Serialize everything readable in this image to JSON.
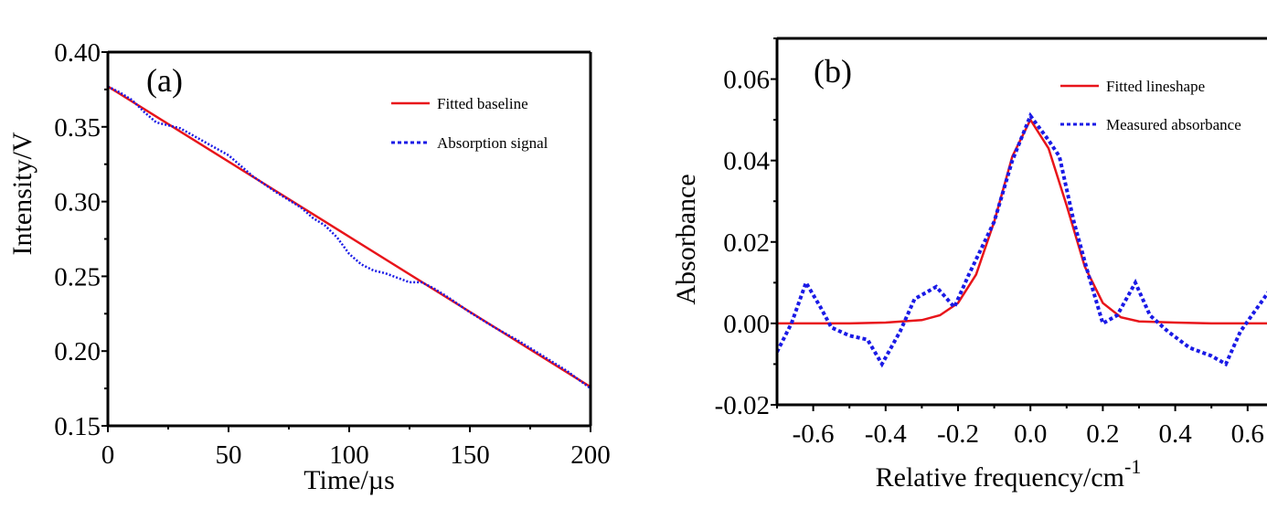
{
  "chart_data": [
    {
      "type": "line",
      "panel_label": "(a)",
      "xlabel": "Time/µs",
      "ylabel": "Intensity/V",
      "xlim": [
        0,
        200
      ],
      "ylim": [
        0.15,
        0.4
      ],
      "xticks": [
        "0",
        "50",
        "100",
        "150",
        "200"
      ],
      "xtick_values": [
        0,
        50,
        100,
        150,
        200
      ],
      "yticks": [
        "0.15",
        "0.20",
        "0.25",
        "0.30",
        "0.35",
        "0.40"
      ],
      "ytick_values": [
        0.15,
        0.2,
        0.25,
        0.3,
        0.35,
        0.4
      ],
      "legend_position": "top-right",
      "series": [
        {
          "name": "Fitted baseline",
          "style": "solid",
          "color": "#e8141a",
          "x": [
            0,
            200
          ],
          "y": [
            0.377,
            0.176
          ]
        },
        {
          "name": "Absorption signal",
          "style": "dotted",
          "color": "#1a1ae6",
          "x": [
            0,
            5,
            10,
            15,
            20,
            30,
            40,
            50,
            60,
            70,
            80,
            85,
            90,
            95,
            100,
            105,
            110,
            115,
            120,
            125,
            130,
            135,
            140,
            150,
            160,
            170,
            180,
            190,
            200
          ],
          "y": [
            0.377,
            0.373,
            0.368,
            0.36,
            0.353,
            0.349,
            0.34,
            0.331,
            0.317,
            0.306,
            0.296,
            0.289,
            0.284,
            0.276,
            0.265,
            0.258,
            0.254,
            0.252,
            0.249,
            0.246,
            0.246,
            0.242,
            0.237,
            0.226,
            0.216,
            0.207,
            0.197,
            0.187,
            0.175
          ]
        }
      ]
    },
    {
      "type": "line",
      "panel_label": "(b)",
      "xlabel": "Relative frequency/cm",
      "xlabel_superscript": "-1",
      "ylabel": "Absorbance",
      "xlim": [
        -0.7,
        0.66
      ],
      "ylim": [
        -0.02,
        0.07
      ],
      "xticks": [
        "-0.6",
        "-0.4",
        "-0.2",
        "0.0",
        "0.2",
        "0.4",
        "0.6"
      ],
      "xtick_values": [
        -0.6,
        -0.4,
        -0.2,
        0.0,
        0.2,
        0.4,
        0.6
      ],
      "yticks": [
        "-0.02",
        "0.00",
        "0.02",
        "0.04",
        "0.06"
      ],
      "ytick_values": [
        -0.02,
        0.0,
        0.02,
        0.04,
        0.06
      ],
      "legend_position": "top-right",
      "series": [
        {
          "name": "Fitted lineshape",
          "style": "solid",
          "color": "#e8141a",
          "x": [
            -0.7,
            -0.5,
            -0.4,
            -0.3,
            -0.25,
            -0.2,
            -0.15,
            -0.1,
            -0.05,
            0.0,
            0.05,
            0.1,
            0.15,
            0.2,
            0.25,
            0.3,
            0.4,
            0.5,
            0.66
          ],
          "y": [
            0.0,
            0.0,
            0.0002,
            0.0008,
            0.002,
            0.005,
            0.012,
            0.025,
            0.041,
            0.05,
            0.043,
            0.029,
            0.014,
            0.005,
            0.0015,
            0.0005,
            0.0002,
            0.0,
            0.0
          ]
        },
        {
          "name": "Measured absorbance",
          "style": "dotted",
          "color": "#1a1ae6",
          "x": [
            -0.7,
            -0.66,
            -0.62,
            -0.58,
            -0.55,
            -0.5,
            -0.45,
            -0.41,
            -0.36,
            -0.32,
            -0.26,
            -0.21,
            -0.17,
            -0.1,
            -0.05,
            0.0,
            0.05,
            0.08,
            0.12,
            0.16,
            0.2,
            0.24,
            0.29,
            0.33,
            0.38,
            0.44,
            0.5,
            0.54,
            0.58,
            0.62,
            0.66
          ],
          "y": [
            -0.007,
            0.0,
            0.01,
            0.004,
            -0.001,
            -0.003,
            -0.004,
            -0.01,
            -0.002,
            0.006,
            0.009,
            0.004,
            0.012,
            0.025,
            0.04,
            0.051,
            0.045,
            0.041,
            0.025,
            0.012,
            0.0,
            0.002,
            0.01,
            0.002,
            -0.002,
            -0.006,
            -0.008,
            -0.01,
            -0.002,
            0.003,
            0.008
          ]
        }
      ]
    }
  ]
}
